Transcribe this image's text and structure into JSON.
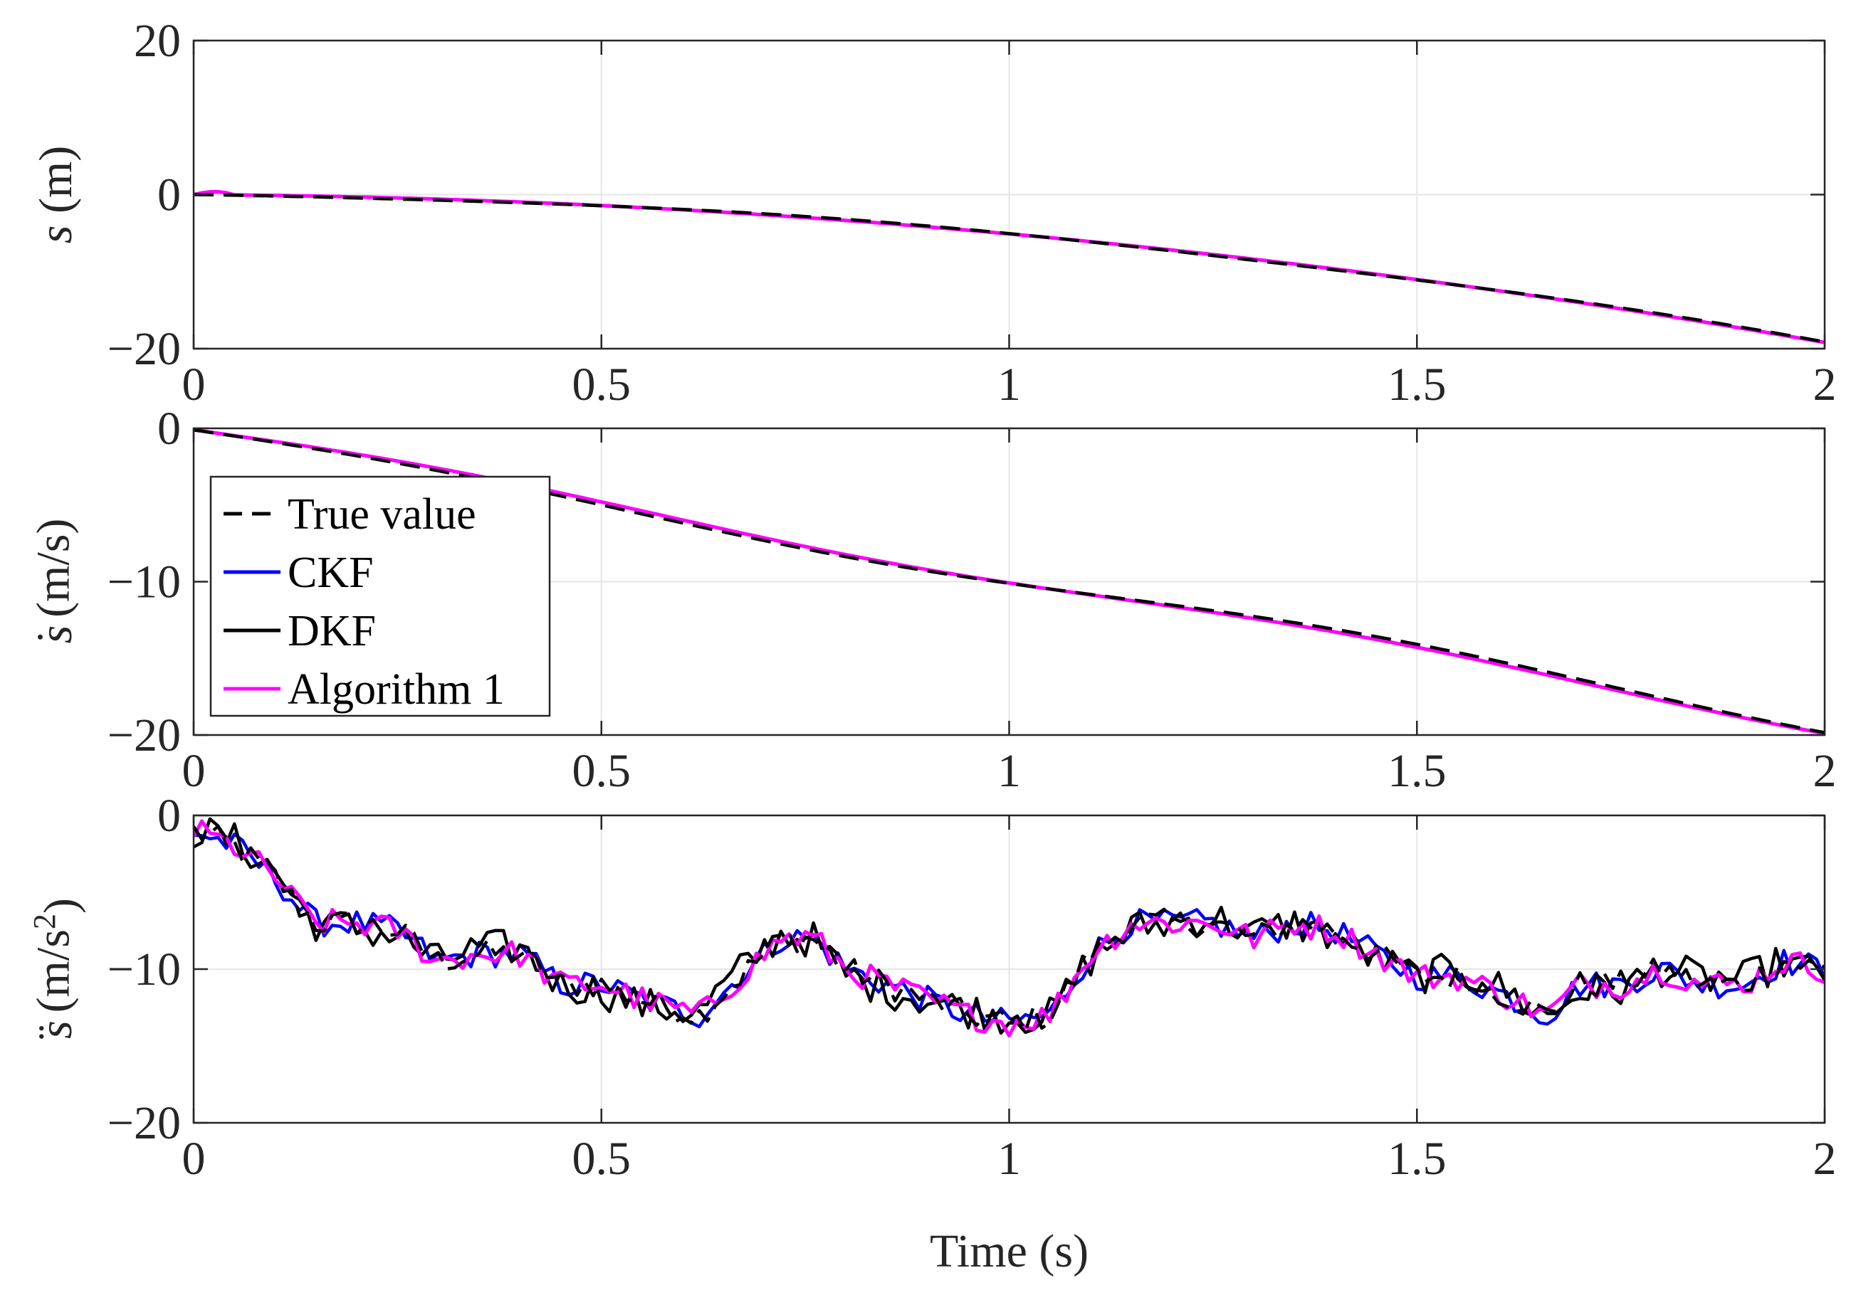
{
  "chart_data": [
    {
      "type": "line",
      "ylabel_var": "s",
      "ylabel_dots": "",
      "ylabel_unit": " (m)",
      "ylabel_sup": "",
      "ylabel_tail": "",
      "xlabel": "",
      "xlim": [
        0,
        2
      ],
      "ylim": [
        -20,
        20
      ],
      "xticks": [
        0,
        0.5,
        1,
        1.5,
        2
      ],
      "xtick_labels": [
        "0",
        "0.5",
        "1",
        "1.5",
        "2"
      ],
      "yticks": [
        -20,
        0,
        20
      ],
      "ytick_labels": [
        "−20",
        "0",
        "20"
      ],
      "grid": true,
      "model": "pos",
      "series": [
        {
          "name": "True value",
          "color": "#000000",
          "dash": true
        },
        {
          "name": "CKF",
          "color": "#0000ff",
          "dash": false
        },
        {
          "name": "DKF",
          "color": "#000000",
          "dash": false
        },
        {
          "name": "Algorithm 1",
          "color": "#ff00ff",
          "dash": false
        }
      ]
    },
    {
      "type": "line",
      "ylabel_var": "s",
      "ylabel_dots": "˙",
      "ylabel_unit": " (m/s)",
      "ylabel_sup": "",
      "ylabel_tail": "",
      "xlabel": "",
      "xlim": [
        0,
        2
      ],
      "ylim": [
        -20,
        0
      ],
      "xticks": [
        0,
        0.5,
        1,
        1.5,
        2
      ],
      "xtick_labels": [
        "0",
        "0.5",
        "1",
        "1.5",
        "2"
      ],
      "yticks": [
        -20,
        -10,
        0
      ],
      "ytick_labels": [
        "−20",
        "−10",
        "0"
      ],
      "grid": true,
      "model": "vel",
      "legend": {
        "position": "upper-left",
        "entries": [
          "True value",
          "CKF",
          "DKF",
          "Algorithm 1"
        ]
      },
      "series": [
        {
          "name": "True value",
          "color": "#000000",
          "dash": true
        },
        {
          "name": "CKF",
          "color": "#0000ff",
          "dash": false
        },
        {
          "name": "DKF",
          "color": "#000000",
          "dash": false
        },
        {
          "name": "Algorithm 1",
          "color": "#ff00ff",
          "dash": false
        }
      ]
    },
    {
      "type": "line",
      "ylabel_var": "s",
      "ylabel_dots": "¨",
      "ylabel_unit": " (m/s",
      "ylabel_sup": "2",
      "ylabel_tail": ")",
      "xlabel": "Time (s)",
      "xlim": [
        0,
        2
      ],
      "ylim": [
        -20,
        0
      ],
      "xticks": [
        0,
        0.5,
        1,
        1.5,
        2
      ],
      "xtick_labels": [
        "0",
        "0.5",
        "1",
        "1.5",
        "2"
      ],
      "yticks": [
        -20,
        -10,
        0
      ],
      "ytick_labels": [
        "−20",
        "−10",
        "0"
      ],
      "grid": true,
      "model": "acc",
      "anchor_t": [
        0,
        0.05,
        0.1,
        0.13,
        0.15,
        0.2,
        0.25,
        0.3,
        0.35,
        0.4,
        0.45,
        0.5,
        0.55,
        0.62,
        0.66,
        0.72,
        0.76,
        0.8,
        0.85,
        0.9,
        0.95,
        1.0,
        1.05,
        1.1,
        1.15,
        1.2,
        1.25,
        1.3,
        1.35,
        1.4,
        1.45,
        1.5,
        1.55,
        1.6,
        1.66,
        1.7,
        1.75,
        1.8,
        1.85,
        1.9,
        1.95,
        2.0
      ],
      "anchor_acc": [
        -1,
        -2,
        -4,
        -6,
        -7,
        -7,
        -7.5,
        -9.5,
        -9,
        -9,
        -11,
        -11,
        -12,
        -13,
        -11,
        -8,
        -8,
        -10,
        -11,
        -12,
        -13,
        -13.5,
        -13,
        -9,
        -7,
        -7,
        -7,
        -8,
        -7,
        -7.5,
        -9,
        -10.5,
        -10.5,
        -11.5,
        -13,
        -11,
        -11,
        -10,
        -11,
        -11,
        -9.5,
        -10
      ],
      "series": [
        {
          "name": "True value",
          "color": "#000000",
          "dash": true
        },
        {
          "name": "CKF",
          "color": "#0000ff",
          "dash": false
        },
        {
          "name": "DKF",
          "color": "#000000",
          "dash": false
        },
        {
          "name": "Algorithm 1",
          "color": "#ff00ff",
          "dash": false
        }
      ]
    }
  ]
}
